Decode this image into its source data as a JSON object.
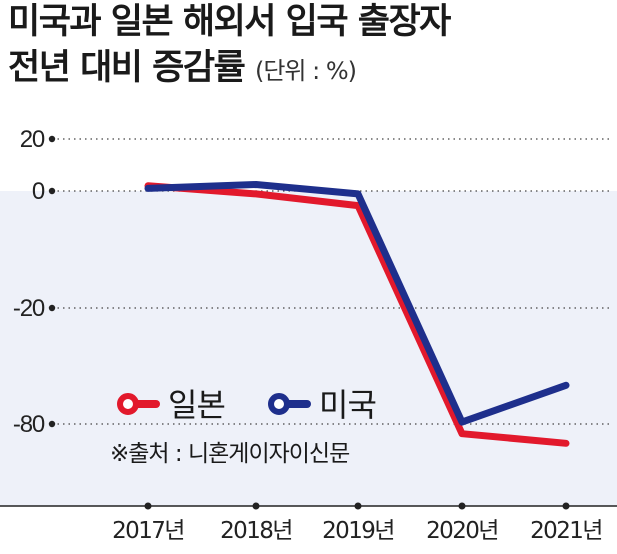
{
  "title": {
    "line1": "미국과 일본 해외서 입국 출장자",
    "line2": "전년 대비 증감률",
    "unit": "(단위 : %)"
  },
  "chart_data": {
    "type": "line",
    "categories": [
      "2017년",
      "2018년",
      "2019년",
      "2020년",
      "2021년"
    ],
    "y_ticks": [
      "20",
      "0",
      "-20",
      "-80"
    ],
    "series": [
      {
        "name": "일본",
        "color": "#e2192c",
        "values": [
          2,
          -0.5,
          -2.5,
          -85,
          -90
        ]
      },
      {
        "name": "미국",
        "color": "#1e2f8c",
        "values": [
          1,
          2.5,
          -0.5,
          -79,
          -60
        ]
      }
    ],
    "note": "y-axis is broken: gridlines at 20, 0, -20, -80",
    "shaded_below_zero": true,
    "grid": "dotted horizontal",
    "legend_position": "bottom-left"
  },
  "source": "※출처 : 니혼게이자이신문",
  "colors": {
    "shade": "#eef1f9",
    "japan": "#e2192c",
    "usa": "#1e2f8c"
  }
}
